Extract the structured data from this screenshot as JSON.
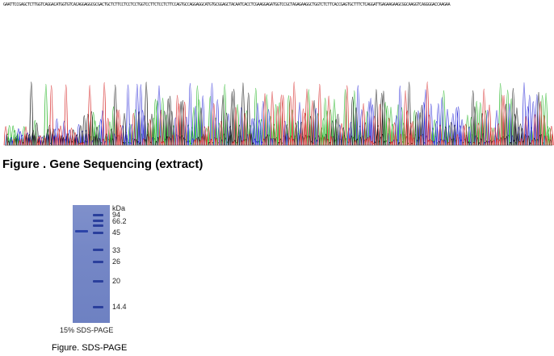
{
  "sequence_strip": "GAATTCCGAGCTCTTGGTCAGGACATGGTGTCACAGGAGGCGCGACTGCTCTTCCTCCTCCTGGTCCTTCTCCTCTTCCAGTGCCAGGAGGCATGTGCGGAGCTACAATCACCTCGAAGGAGATGGTCCGCTAGAGAAGGCTGGTCTCTTCACCGAGTGCTTTCTCAGGATTGAGAAGAAGCGGCAAGGTCAGGGGACCAAGAA",
  "figure_gene": {
    "caption": "Figure . Gene Sequencing (extract)"
  },
  "figure_sds": {
    "unit_label": "kDa",
    "markers": [
      "94",
      "66.2",
      "45",
      "33",
      "26",
      "20",
      "14.4"
    ],
    "gel_label": "15% SDS-PAGE",
    "caption": "Figure. SDS-PAGE"
  },
  "colors": {
    "A": "#1db31d",
    "C": "#2424d6",
    "G": "#111111",
    "T": "#d42020",
    "gel": "#7587c6",
    "band": "#2a3f9c"
  }
}
